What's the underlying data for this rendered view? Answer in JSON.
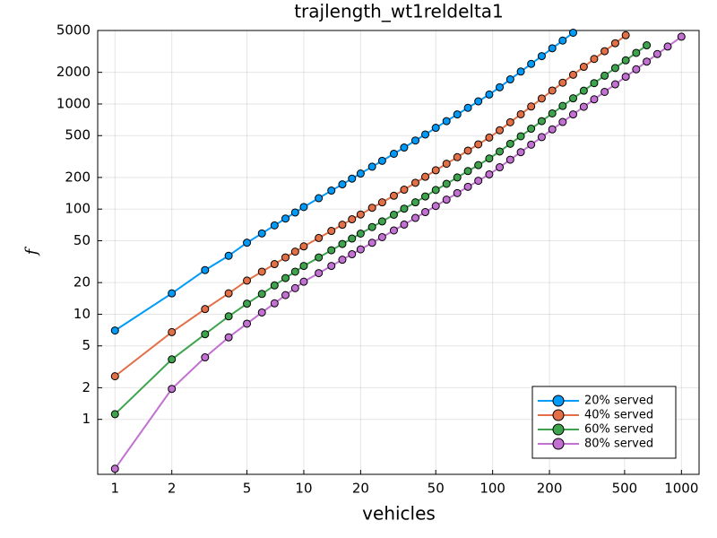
{
  "chart_data": {
    "type": "line",
    "title": "trajlength_wt1reldelta1",
    "x_label": "vehicles",
    "y_label": "f",
    "x_log": true,
    "y_log": true,
    "grid": true,
    "legend": "lower right",
    "xlim": [
      0.81,
      1240
    ],
    "ylim": [
      0.3,
      5000
    ],
    "xticks": [
      1,
      2,
      5,
      10,
      20,
      50,
      100,
      200,
      500,
      1000
    ],
    "yticks": [
      1,
      2,
      5,
      10,
      20,
      50,
      100,
      200,
      500,
      1000,
      2000,
      5000
    ],
    "x": [
      1,
      2,
      3,
      4,
      5,
      6,
      7,
      8,
      9,
      10,
      12,
      14,
      16,
      18,
      20,
      23,
      26,
      30,
      34,
      39,
      44,
      50,
      57,
      65,
      74,
      84,
      96,
      109,
      124,
      141,
      160,
      182,
      207,
      235,
      267,
      304,
      345,
      392,
      446,
      507,
      576,
      655,
      745,
      846,
      1000
    ],
    "series": [
      {
        "name": "20% served",
        "color": "#009af9",
        "values": [
          7.0,
          15.8,
          26.3,
          36.0,
          47.9,
          58.7,
          70.0,
          81.3,
          92.9,
          104.7,
          127,
          150,
          172,
          195,
          218,
          253,
          288,
          336,
          385,
          449,
          513,
          593,
          687,
          796,
          919,
          1059,
          1230,
          1442,
          1713,
          2034,
          2406,
          2853,
          3388,
          4009,
          4762,
          null,
          null,
          null,
          null,
          null,
          null,
          null,
          null,
          null,
          null
        ]
      },
      {
        "name": "40% served",
        "color": "#e26f46",
        "values": [
          2.57,
          6.76,
          11.2,
          15.8,
          20.9,
          25.4,
          30.0,
          34.7,
          39.4,
          44.2,
          53.1,
          62.0,
          71.0,
          80.0,
          88.9,
          103,
          116,
          134,
          153,
          178,
          203,
          234,
          270,
          312,
          360,
          413,
          479,
          562,
          670,
          798,
          946,
          1127,
          1342,
          1593,
          1896,
          2256,
          2680,
          3178,
          3784,
          4508,
          null,
          null,
          null,
          null,
          null
        ]
      },
      {
        "name": "60% served",
        "color": "#3da44d",
        "values": [
          1.12,
          3.72,
          6.46,
          9.55,
          12.6,
          15.6,
          18.8,
          22.1,
          25.4,
          28.8,
          34.7,
          40.6,
          46.6,
          52.5,
          58.5,
          67.5,
          76.4,
          88.4,
          101,
          116,
          132,
          152,
          174,
          200,
          230,
          262,
          303,
          353,
          418,
          493,
          582,
          687,
          813,
          958,
          1132,
          1337,
          1578,
          1858,
          2198,
          2600,
          3062,
          3614,
          null,
          null,
          null
        ]
      },
      {
        "name": "80% served",
        "color": "#c271d2",
        "values": [
          0.339,
          1.95,
          3.89,
          6.03,
          8.13,
          10.4,
          12.7,
          15.2,
          17.7,
          20.4,
          24.6,
          28.8,
          33.0,
          37.2,
          41.4,
          47.8,
          54.1,
          62.7,
          71.3,
          82.4,
          93.7,
          107,
          123,
          142,
          163,
          186,
          214,
          250,
          295,
          348,
          410,
          484,
          573,
          674,
          796,
          940,
          1107,
          1303,
          1538,
          1816,
          2138,
          2529,
          2985,
          3516,
          4365
        ]
      }
    ]
  }
}
